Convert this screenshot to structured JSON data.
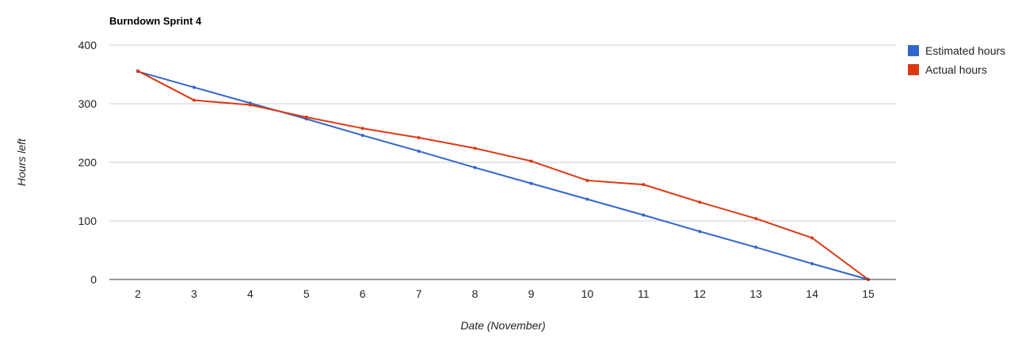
{
  "chart_data": {
    "type": "line",
    "title": "Burndown Sprint 4",
    "xlabel": "Date (November)",
    "ylabel": "Hours left",
    "x": [
      2,
      3,
      4,
      5,
      6,
      7,
      8,
      9,
      10,
      11,
      12,
      13,
      14,
      15
    ],
    "ylim": [
      0,
      400
    ],
    "yticks": [
      0,
      100,
      200,
      300,
      400
    ],
    "grid": true,
    "legend": "right",
    "series": [
      {
        "name": "Estimated hours",
        "color": "#3366cc",
        "values": [
          355,
          328,
          301,
          274,
          246,
          219,
          191,
          164,
          137,
          110,
          82,
          55,
          27,
          0
        ]
      },
      {
        "name": "Actual hours",
        "color": "#dc3912",
        "values": [
          356,
          306,
          298,
          277,
          258,
          242,
          224,
          202,
          169,
          162,
          132,
          104,
          71,
          0
        ]
      }
    ]
  }
}
